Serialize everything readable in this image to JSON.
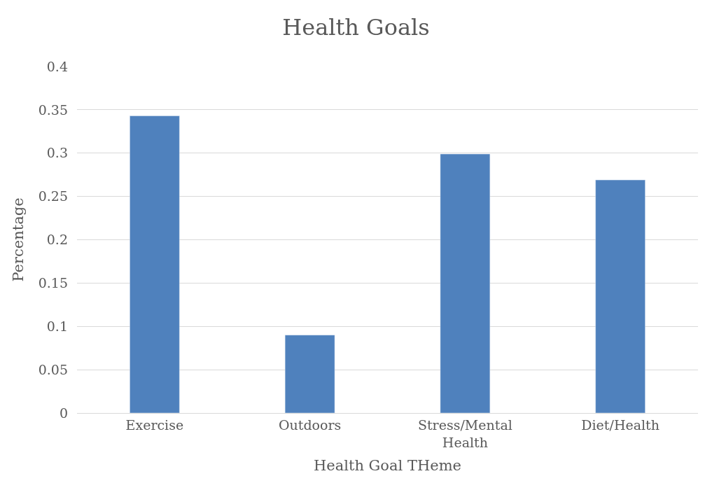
{
  "chart_data": {
    "type": "bar",
    "title": "Health Goals",
    "xlabel": "Health Goal THeme",
    "ylabel": "Percentage",
    "categories": [
      "Exercise",
      "Outdoors",
      "Stress/Mental Health",
      "Diet/Health"
    ],
    "values": [
      0.343,
      0.09,
      0.299,
      0.269
    ],
    "color": "#4f81bd",
    "ylim": [
      0,
      0.4
    ],
    "yticks": [
      0,
      0.05,
      0.1,
      0.15,
      0.2,
      0.25,
      0.3,
      0.35,
      0.4
    ],
    "grid": "y",
    "legend": false
  }
}
